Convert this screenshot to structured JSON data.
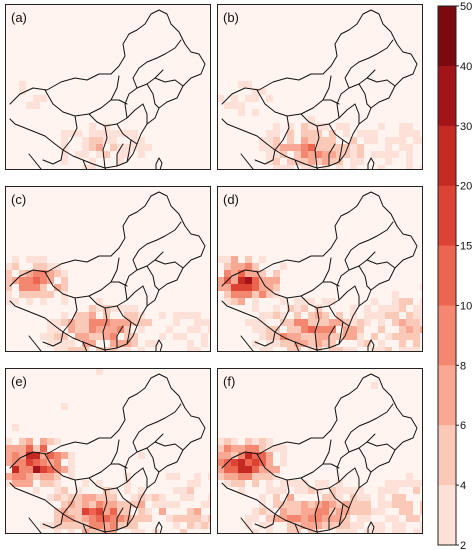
{
  "figure": {
    "type": "map-panels",
    "panels": [
      {
        "label": "(a)",
        "intensity": 0.25,
        "west": 0.15,
        "south": 0.35,
        "east": 0.08
      },
      {
        "label": "(b)",
        "intensity": 0.38,
        "west": 0.18,
        "south": 0.55,
        "east": 0.22
      },
      {
        "label": "(c)",
        "intensity": 0.55,
        "west": 0.6,
        "south": 0.65,
        "east": 0.2
      },
      {
        "label": "(d)",
        "intensity": 0.7,
        "west": 0.85,
        "south": 0.65,
        "east": 0.45
      },
      {
        "label": "(e)",
        "intensity": 0.8,
        "west": 1.0,
        "south": 0.75,
        "east": 0.4
      },
      {
        "label": "(f)",
        "intensity": 0.7,
        "west": 0.9,
        "south": 0.65,
        "east": 0.4
      }
    ],
    "colorbar": {
      "tick_labels": [
        "2",
        "4",
        "6",
        "8",
        "10",
        "15",
        "20",
        "30",
        "40",
        "50"
      ],
      "colors": [
        "#fff2ee",
        "#fde1d8",
        "#fbc9b8",
        "#f8a893",
        "#f3876f",
        "#ec6550",
        "#dc4335",
        "#c42a22",
        "#a3141a",
        "#7a0a10"
      ]
    },
    "colors": {
      "background": "#fff4ef",
      "border": "#222222",
      "boundary_line": "#111111"
    }
  }
}
